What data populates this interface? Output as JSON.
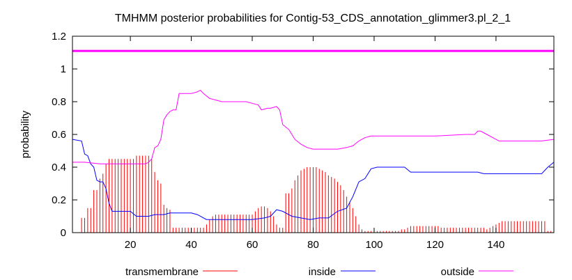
{
  "chart_data": {
    "type": "line",
    "title": "TMHMM posterior probabilities for Contig-53_CDS_annotation_glimmer3.pl_2_1",
    "ylabel": "probability",
    "xlabel": "",
    "xlim": [
      1,
      159
    ],
    "ylim": [
      0,
      1.2
    ],
    "x_ticks": [
      20,
      40,
      60,
      80,
      100,
      120,
      140
    ],
    "y_ticks": [
      0,
      0.2,
      0.4,
      0.6,
      0.8,
      1,
      1.2
    ],
    "y_tick_labels": [
      "0",
      "0.2",
      "0.4",
      "0.6",
      "0.8",
      "1",
      "1.2"
    ],
    "grid": false,
    "legend_position": "bottom",
    "reference_line": {
      "y": 1.11,
      "color": "#ff00ff"
    },
    "series": [
      {
        "name": "transmembrane",
        "style": "impulses",
        "color": "#ff0000",
        "points": [
          [
            1,
            0.0
          ],
          [
            2,
            0.0
          ],
          [
            3,
            0.0
          ],
          [
            4,
            0.09
          ],
          [
            5,
            0.09
          ],
          [
            6,
            0.15
          ],
          [
            7,
            0.15
          ],
          [
            8,
            0.26
          ],
          [
            9,
            0.26
          ],
          [
            10,
            0.33
          ],
          [
            11,
            0.36
          ],
          [
            12,
            0.42
          ],
          [
            13,
            0.45
          ],
          [
            14,
            0.45
          ],
          [
            15,
            0.45
          ],
          [
            16,
            0.45
          ],
          [
            17,
            0.45
          ],
          [
            18,
            0.45
          ],
          [
            19,
            0.45
          ],
          [
            20,
            0.45
          ],
          [
            21,
            0.45
          ],
          [
            22,
            0.47
          ],
          [
            23,
            0.47
          ],
          [
            24,
            0.47
          ],
          [
            25,
            0.47
          ],
          [
            26,
            0.47
          ],
          [
            27,
            0.45
          ],
          [
            28,
            0.37
          ],
          [
            29,
            0.32
          ],
          [
            30,
            0.3
          ],
          [
            31,
            0.17
          ],
          [
            32,
            0.15
          ],
          [
            33,
            0.14
          ],
          [
            34,
            0.03
          ],
          [
            35,
            0.03
          ],
          [
            36,
            0.03
          ],
          [
            37,
            0.03
          ],
          [
            38,
            0.03
          ],
          [
            39,
            0.03
          ],
          [
            40,
            0.03
          ],
          [
            41,
            0.03
          ],
          [
            42,
            0.03
          ],
          [
            43,
            0.03
          ],
          [
            44,
            0.03
          ],
          [
            45,
            0.05
          ],
          [
            46,
            0.08
          ],
          [
            47,
            0.1
          ],
          [
            48,
            0.11
          ],
          [
            49,
            0.11
          ],
          [
            50,
            0.11
          ],
          [
            51,
            0.11
          ],
          [
            52,
            0.11
          ],
          [
            53,
            0.11
          ],
          [
            54,
            0.11
          ],
          [
            55,
            0.11
          ],
          [
            56,
            0.11
          ],
          [
            57,
            0.11
          ],
          [
            58,
            0.11
          ],
          [
            59,
            0.11
          ],
          [
            60,
            0.11
          ],
          [
            61,
            0.13
          ],
          [
            62,
            0.15
          ],
          [
            63,
            0.16
          ],
          [
            64,
            0.16
          ],
          [
            65,
            0.15
          ],
          [
            66,
            0.13
          ],
          [
            67,
            0.1
          ],
          [
            68,
            0.05
          ],
          [
            69,
            0.03
          ],
          [
            70,
            0.03
          ],
          [
            71,
            0.24
          ],
          [
            72,
            0.24
          ],
          [
            73,
            0.27
          ],
          [
            74,
            0.32
          ],
          [
            75,
            0.35
          ],
          [
            76,
            0.38
          ],
          [
            77,
            0.39
          ],
          [
            78,
            0.4
          ],
          [
            79,
            0.4
          ],
          [
            80,
            0.4
          ],
          [
            81,
            0.4
          ],
          [
            82,
            0.39
          ],
          [
            83,
            0.38
          ],
          [
            84,
            0.37
          ],
          [
            85,
            0.35
          ],
          [
            86,
            0.34
          ],
          [
            87,
            0.33
          ],
          [
            88,
            0.31
          ],
          [
            89,
            0.29
          ],
          [
            90,
            0.26
          ],
          [
            91,
            0.22
          ],
          [
            92,
            0.19
          ],
          [
            93,
            0.15
          ],
          [
            94,
            0.1
          ],
          [
            95,
            0.05
          ],
          [
            96,
            0.02
          ],
          [
            97,
            0.01
          ],
          [
            98,
            0.01
          ],
          [
            99,
            0.01
          ],
          [
            100,
            0.01
          ],
          [
            101,
            0.01
          ],
          [
            102,
            0.01
          ],
          [
            103,
            0.01
          ],
          [
            104,
            0.01
          ],
          [
            105,
            0.01
          ],
          [
            106,
            0.01
          ],
          [
            107,
            0.01
          ],
          [
            108,
            0.01
          ],
          [
            109,
            0.02
          ],
          [
            110,
            0.02
          ],
          [
            111,
            0.03
          ],
          [
            112,
            0.04
          ],
          [
            113,
            0.04
          ],
          [
            114,
            0.04
          ],
          [
            115,
            0.04
          ],
          [
            116,
            0.04
          ],
          [
            117,
            0.04
          ],
          [
            118,
            0.04
          ],
          [
            119,
            0.04
          ],
          [
            120,
            0.04
          ],
          [
            121,
            0.04
          ],
          [
            122,
            0.03
          ],
          [
            123,
            0.03
          ],
          [
            124,
            0.03
          ],
          [
            125,
            0.03
          ],
          [
            126,
            0.03
          ],
          [
            127,
            0.03
          ],
          [
            128,
            0.03
          ],
          [
            129,
            0.03
          ],
          [
            130,
            0.03
          ],
          [
            131,
            0.03
          ],
          [
            132,
            0.03
          ],
          [
            133,
            0.03
          ],
          [
            134,
            0.03
          ],
          [
            135,
            0.03
          ],
          [
            136,
            0.03
          ],
          [
            137,
            0.02
          ],
          [
            138,
            0.03
          ],
          [
            139,
            0.04
          ],
          [
            140,
            0.05
          ],
          [
            141,
            0.06
          ],
          [
            142,
            0.07
          ],
          [
            143,
            0.07
          ],
          [
            144,
            0.07
          ],
          [
            145,
            0.07
          ],
          [
            146,
            0.07
          ],
          [
            147,
            0.07
          ],
          [
            148,
            0.07
          ],
          [
            149,
            0.07
          ],
          [
            150,
            0.07
          ],
          [
            151,
            0.07
          ],
          [
            152,
            0.07
          ],
          [
            153,
            0.07
          ],
          [
            154,
            0.07
          ],
          [
            155,
            0.07
          ],
          [
            156,
            0.07
          ],
          [
            157,
            0.01
          ],
          [
            158,
            0.01
          ],
          [
            159,
            0.01
          ]
        ]
      },
      {
        "name": "inside",
        "style": "line",
        "color": "#0000ff",
        "points": [
          [
            1,
            0.57
          ],
          [
            4,
            0.56
          ],
          [
            5,
            0.48
          ],
          [
            6,
            0.47
          ],
          [
            7,
            0.42
          ],
          [
            8,
            0.4
          ],
          [
            9,
            0.32
          ],
          [
            10,
            0.31
          ],
          [
            11,
            0.31
          ],
          [
            12,
            0.27
          ],
          [
            13,
            0.18
          ],
          [
            14,
            0.13
          ],
          [
            16,
            0.13
          ],
          [
            20,
            0.13
          ],
          [
            22,
            0.1
          ],
          [
            26,
            0.1
          ],
          [
            28,
            0.11
          ],
          [
            31,
            0.11
          ],
          [
            33,
            0.12
          ],
          [
            40,
            0.12
          ],
          [
            42,
            0.11
          ],
          [
            45,
            0.08
          ],
          [
            52,
            0.08
          ],
          [
            60,
            0.08
          ],
          [
            64,
            0.09
          ],
          [
            66,
            0.1
          ],
          [
            68,
            0.14
          ],
          [
            70,
            0.13
          ],
          [
            73,
            0.1
          ],
          [
            76,
            0.09
          ],
          [
            79,
            0.08
          ],
          [
            82,
            0.09
          ],
          [
            85,
            0.09
          ],
          [
            88,
            0.13
          ],
          [
            91,
            0.15
          ],
          [
            93,
            0.22
          ],
          [
            95,
            0.31
          ],
          [
            97,
            0.33
          ],
          [
            99,
            0.39
          ],
          [
            101,
            0.4
          ],
          [
            110,
            0.4
          ],
          [
            112,
            0.37
          ],
          [
            130,
            0.37
          ],
          [
            134,
            0.37
          ],
          [
            136,
            0.36
          ],
          [
            145,
            0.36
          ],
          [
            155,
            0.36
          ],
          [
            157,
            0.4
          ],
          [
            159,
            0.43
          ]
        ]
      },
      {
        "name": "outside",
        "style": "line",
        "color": "#ff00ff",
        "points": [
          [
            1,
            0.43
          ],
          [
            5,
            0.43
          ],
          [
            10,
            0.42
          ],
          [
            15,
            0.42
          ],
          [
            20,
            0.42
          ],
          [
            25,
            0.42
          ],
          [
            26,
            0.43
          ],
          [
            27,
            0.45
          ],
          [
            28,
            0.52
          ],
          [
            29,
            0.53
          ],
          [
            30,
            0.57
          ],
          [
            31,
            0.69
          ],
          [
            32,
            0.72
          ],
          [
            33,
            0.74
          ],
          [
            34,
            0.75
          ],
          [
            35,
            0.75
          ],
          [
            36,
            0.85
          ],
          [
            40,
            0.85
          ],
          [
            42,
            0.86
          ],
          [
            43,
            0.87
          ],
          [
            44,
            0.85
          ],
          [
            46,
            0.82
          ],
          [
            48,
            0.81
          ],
          [
            50,
            0.8
          ],
          [
            58,
            0.8
          ],
          [
            60,
            0.79
          ],
          [
            62,
            0.78
          ],
          [
            63,
            0.75
          ],
          [
            65,
            0.76
          ],
          [
            66,
            0.76
          ],
          [
            68,
            0.77
          ],
          [
            69,
            0.75
          ],
          [
            70,
            0.66
          ],
          [
            72,
            0.63
          ],
          [
            74,
            0.57
          ],
          [
            76,
            0.54
          ],
          [
            78,
            0.52
          ],
          [
            80,
            0.51
          ],
          [
            88,
            0.51
          ],
          [
            91,
            0.52
          ],
          [
            93,
            0.53
          ],
          [
            95,
            0.56
          ],
          [
            97,
            0.58
          ],
          [
            99,
            0.59
          ],
          [
            110,
            0.59
          ],
          [
            120,
            0.59
          ],
          [
            130,
            0.6
          ],
          [
            133,
            0.6
          ],
          [
            134,
            0.62
          ],
          [
            135,
            0.62
          ],
          [
            137,
            0.6
          ],
          [
            139,
            0.58
          ],
          [
            141,
            0.56
          ],
          [
            145,
            0.56
          ],
          [
            155,
            0.56
          ],
          [
            159,
            0.57
          ]
        ]
      }
    ]
  }
}
